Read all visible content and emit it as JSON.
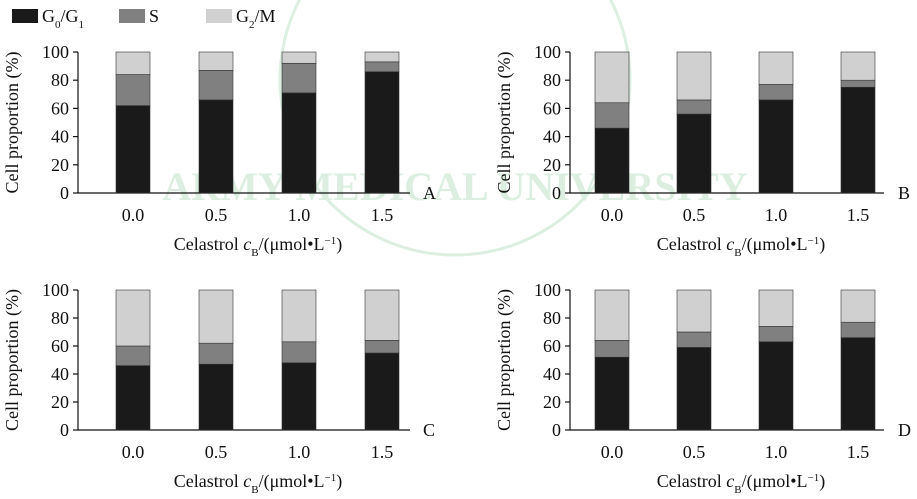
{
  "legend": [
    {
      "key": "g0g1",
      "label": "G0/G1",
      "color": "#1a1a1a"
    },
    {
      "key": "s",
      "label": "S",
      "color": "#808080"
    },
    {
      "key": "g2m",
      "label": "G2/M",
      "color": "#d0d0d0"
    }
  ],
  "chart_data": [
    {
      "panel": "A",
      "type": "bar",
      "stacked": true,
      "categories": [
        "0.0",
        "0.5",
        "1.0",
        "1.5"
      ],
      "series": [
        {
          "name": "G0/G1",
          "values": [
            62,
            66,
            71,
            86
          ]
        },
        {
          "name": "S",
          "values": [
            22,
            21,
            21,
            7
          ]
        },
        {
          "name": "G2/M",
          "values": [
            16,
            13,
            8,
            7
          ]
        }
      ],
      "ylabel": "Cell proportion (%)",
      "xlabel": "Celastrol cB/(μmol•L−1)",
      "ylim": [
        0,
        100
      ],
      "yticks": [
        0,
        20,
        40,
        60,
        80,
        100
      ]
    },
    {
      "panel": "B",
      "type": "bar",
      "stacked": true,
      "categories": [
        "0.0",
        "0.5",
        "1.0",
        "1.5"
      ],
      "series": [
        {
          "name": "G0/G1",
          "values": [
            46,
            56,
            66,
            75
          ]
        },
        {
          "name": "S",
          "values": [
            18,
            10,
            11,
            5
          ]
        },
        {
          "name": "G2/M",
          "values": [
            36,
            34,
            23,
            20
          ]
        }
      ],
      "ylabel": "Cell proportion (%)",
      "xlabel": "Celastrol cB/(μmol•L−1)",
      "ylim": [
        0,
        100
      ],
      "yticks": [
        0,
        20,
        40,
        60,
        80,
        100
      ]
    },
    {
      "panel": "C",
      "type": "bar",
      "stacked": true,
      "categories": [
        "0.0",
        "0.5",
        "1.0",
        "1.5"
      ],
      "series": [
        {
          "name": "G0/G1",
          "values": [
            46,
            47,
            48,
            55
          ]
        },
        {
          "name": "S",
          "values": [
            14,
            15,
            15,
            9
          ]
        },
        {
          "name": "G2/M",
          "values": [
            40,
            38,
            37,
            36
          ]
        }
      ],
      "ylabel": "Cell proportion (%)",
      "xlabel": "Celastrol cB/(μmol•L−1)",
      "ylim": [
        0,
        100
      ],
      "yticks": [
        0,
        20,
        40,
        60,
        80,
        100
      ]
    },
    {
      "panel": "D",
      "type": "bar",
      "stacked": true,
      "categories": [
        "0.0",
        "0.5",
        "1.0",
        "1.5"
      ],
      "series": [
        {
          "name": "G0/G1",
          "values": [
            52,
            59,
            63,
            66
          ]
        },
        {
          "name": "S",
          "values": [
            12,
            11,
            11,
            11
          ]
        },
        {
          "name": "G2/M",
          "values": [
            36,
            30,
            26,
            23
          ]
        }
      ],
      "ylabel": "Cell proportion (%)",
      "xlabel": "Celastrol cB/(μmol•L−1)",
      "ylim": [
        0,
        100
      ],
      "yticks": [
        0,
        20,
        40,
        60,
        80,
        100
      ]
    }
  ],
  "watermark": {
    "text": "ARMY MEDICAL UNIVERSITY",
    "color": "#3fa55a"
  }
}
